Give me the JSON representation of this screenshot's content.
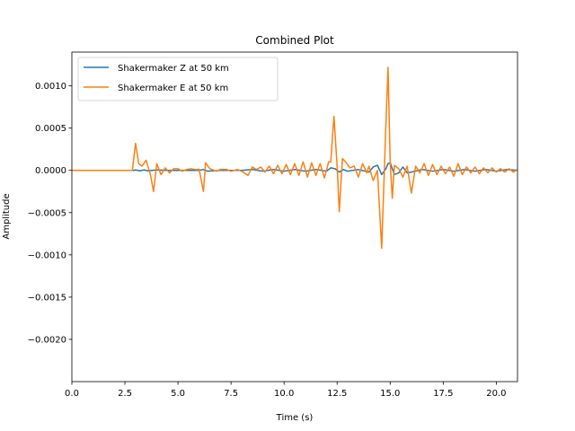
{
  "chart_data": {
    "type": "line",
    "title": "Combined Plot",
    "xlabel": "Time (s)",
    "ylabel": "Amplitude",
    "xlim": [
      0,
      21
    ],
    "ylim": [
      -0.0025,
      0.0014
    ],
    "xticks": [
      0,
      2.5,
      5,
      7.5,
      10,
      12.5,
      15,
      17.5,
      20
    ],
    "xtick_labels": [
      "0.0",
      "2.5",
      "5.0",
      "7.5",
      "10.0",
      "12.5",
      "15.0",
      "17.5",
      "20.0"
    ],
    "yticks": [
      0.001,
      0.0005,
      0,
      -0.0005,
      -0.001,
      -0.0015,
      -0.002
    ],
    "ytick_labels": [
      "0.0010",
      "0.0005",
      "0.0000",
      "−0.0005",
      "−0.0010",
      "−0.0015",
      "−0.0020"
    ],
    "grid": false,
    "legend_position": "top-left",
    "series": [
      {
        "name": "Shakermaker Z at 50 km",
        "color": "#1f77b4",
        "x": [
          0,
          2.9,
          3.0,
          3.2,
          3.4,
          3.6,
          3.8,
          4.0,
          4.5,
          5.0,
          6.0,
          6.2,
          6.4,
          7.0,
          8.0,
          8.5,
          9.0,
          9.5,
          10.0,
          10.5,
          11.0,
          11.5,
          12.0,
          12.2,
          12.4,
          12.6,
          12.8,
          13.0,
          13.5,
          14.0,
          14.2,
          14.4,
          14.6,
          14.8,
          14.9,
          15.0,
          15.2,
          15.4,
          15.6,
          15.8,
          16.0,
          16.5,
          17.0,
          17.5,
          18.0,
          18.5,
          19.0,
          19.5,
          20.0,
          20.5,
          21.0
        ],
        "y": [
          0,
          0,
          5e-06,
          -5e-06,
          5e-06,
          -5e-06,
          0,
          5e-06,
          0,
          0,
          0,
          1e-05,
          -1e-05,
          0,
          0,
          1e-05,
          -1e-05,
          1e-05,
          -1e-05,
          1e-05,
          -1e-05,
          1e-05,
          -1e-05,
          3e-05,
          2e-05,
          -2e-05,
          1e-05,
          -1e-05,
          1e-05,
          -2e-05,
          4e-05,
          6e-05,
          -5e-05,
          2e-05,
          8e-05,
          9e-05,
          -5e-05,
          -3e-05,
          4e-05,
          -3e-05,
          -2e-05,
          1e-05,
          -1e-05,
          1e-05,
          -1e-05,
          1e-05,
          -1e-05,
          1e-05,
          -1e-05,
          1e-05,
          0
        ]
      },
      {
        "name": "Shakermaker E at 50 km",
        "color": "#ff7f0e",
        "x": [
          0,
          2.85,
          3.0,
          3.15,
          3.3,
          3.5,
          3.7,
          3.85,
          4.0,
          4.2,
          4.4,
          4.6,
          4.8,
          5.0,
          5.2,
          5.4,
          5.6,
          5.8,
          6.0,
          6.2,
          6.3,
          6.5,
          6.8,
          7.0,
          7.3,
          7.5,
          7.8,
          8.0,
          8.3,
          8.5,
          8.7,
          8.9,
          9.1,
          9.3,
          9.5,
          9.7,
          9.9,
          10.1,
          10.3,
          10.5,
          10.7,
          10.9,
          11.1,
          11.3,
          11.5,
          11.7,
          11.9,
          12.1,
          12.2,
          12.35,
          12.5,
          12.6,
          12.75,
          12.9,
          13.1,
          13.3,
          13.5,
          13.7,
          13.9,
          14.0,
          14.2,
          14.4,
          14.6,
          14.8,
          14.9,
          15.0,
          15.1,
          15.2,
          15.4,
          15.6,
          15.8,
          16.0,
          16.2,
          16.4,
          16.6,
          16.8,
          17.0,
          17.2,
          17.4,
          17.6,
          17.8,
          18.0,
          18.2,
          18.4,
          18.6,
          18.8,
          19.0,
          19.2,
          19.4,
          19.6,
          19.8,
          20.0,
          20.2,
          20.4,
          20.6,
          20.8,
          21.0
        ],
        "y": [
          0,
          0,
          0.00032,
          8e-05,
          5e-05,
          0.00012,
          -5e-05,
          -0.00025,
          8e-05,
          -5e-05,
          3e-05,
          -3e-05,
          2e-05,
          2e-05,
          -1e-05,
          1e-05,
          2e-05,
          1e-05,
          1e-05,
          -0.00025,
          9e-05,
          2e-05,
          -1e-05,
          1e-05,
          1e-05,
          -1e-05,
          1e-05,
          -1e-05,
          -6e-05,
          4e-05,
          1e-05,
          4e-05,
          -2e-05,
          5e-05,
          -4e-05,
          6e-05,
          -4e-05,
          7e-05,
          -5e-05,
          8e-05,
          -6e-05,
          0.0001,
          -8e-05,
          9e-05,
          -6e-05,
          8e-05,
          -9e-05,
          0.0001,
          0.0001,
          0.00064,
          5e-05,
          -0.00049,
          0.00014,
          0.0001,
          3e-05,
          5e-05,
          -8e-05,
          8e-05,
          -3e-05,
          5e-05,
          -0.00012,
          0.0,
          -0.00092,
          0.00055,
          0.00122,
          0.0001,
          -0.00033,
          6e-05,
          2e-05,
          -8e-05,
          5e-05,
          -0.00027,
          5e-05,
          -3e-05,
          8e-05,
          -6e-05,
          7e-05,
          -5e-05,
          5e-05,
          -4e-05,
          4e-05,
          -7e-05,
          8e-05,
          -5e-05,
          4e-05,
          -3e-05,
          4e-05,
          -4e-05,
          3e-05,
          -3e-05,
          3e-05,
          -2e-05,
          2e-05,
          -2e-05,
          2e-05,
          -2e-05,
          1e-05
        ]
      }
    ]
  }
}
